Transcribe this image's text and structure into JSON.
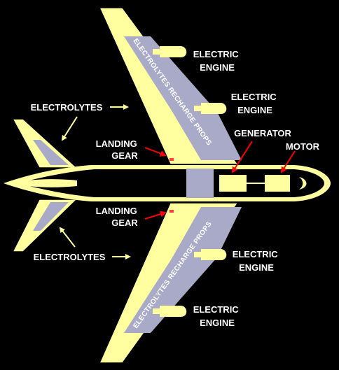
{
  "labels": {
    "electric_engine_1": [
      "ELECTRIC",
      "ENGINE"
    ],
    "electric_engine_2": [
      "ELECTRIC",
      "ENGINE"
    ],
    "electric_engine_3": [
      "ELECTRIC",
      "ENGINE"
    ],
    "electric_engine_4": [
      "ELECTRIC",
      "ENGINE"
    ],
    "electrolytes_top": "ELECTROLYTES",
    "electrolytes_bottom": "ELECTROLYTES",
    "landing_gear_top": [
      "LANDING",
      "GEAR"
    ],
    "landing_gear_bottom": [
      "LANDING",
      "GEAR"
    ],
    "generator": "GENERATOR",
    "motor": "MOTOR",
    "wing_top_text": "ELECTROLYTES RECHARGE PROPS",
    "wing_bottom_text": "ELECTROLYTES RECHARGE PROPS"
  },
  "colors": {
    "background": "#000000",
    "structure": "#ffffa0",
    "panel": "#a9a9c8",
    "arrow_white": "#ffffa0",
    "arrow_red": "#ff0000",
    "text": "#ffffff"
  }
}
